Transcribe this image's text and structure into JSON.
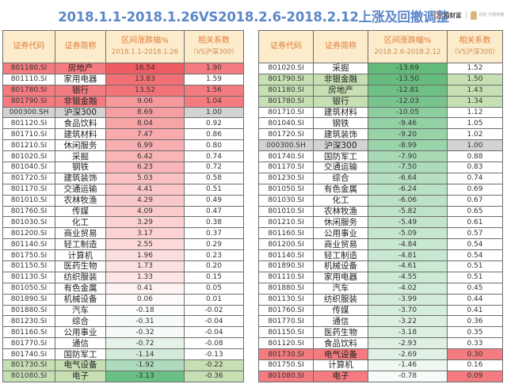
{
  "title": "2018.1.1-2018.1.26VS2018.2.6-2018.2.12上涨及回撤调整",
  "logo": {
    "brand": "拍财富",
    "sub": "财经 扫描神器"
  },
  "left_table": {
    "headers": {
      "code": "证券代码",
      "name": "证券简称",
      "change": "区间涨跌幅%",
      "change_period": "2018.1.1-2018.1.26",
      "corr": "相关系数",
      "corr_sub": "（VS沪深300）"
    },
    "rows": [
      {
        "code": "801180.SI",
        "name": "房地产",
        "change": "16.54",
        "corr": "1.90",
        "row_bg": "#f47b7f",
        "change_bg": "#ee5c62",
        "corr_bg": "#f47b7f"
      },
      {
        "code": "801110.SI",
        "name": "家用电器",
        "change": "13.83",
        "corr": "1.59",
        "row_bg": "#ffffff",
        "change_bg": "#f27075",
        "corr_bg": "#ffffff"
      },
      {
        "code": "801780.SI",
        "name": "银行",
        "change": "13.52",
        "corr": "1.56",
        "row_bg": "#f47b7f",
        "change_bg": "#f27378",
        "corr_bg": "#f47b7f"
      },
      {
        "code": "801790.SI",
        "name": "非银金融",
        "change": "9.06",
        "corr": "1.04",
        "row_bg": "#f47b7f",
        "change_bg": "#f6999c",
        "corr_bg": "#f47b7f"
      },
      {
        "code": "000300.SH",
        "name": "沪深300",
        "change": "8.69",
        "corr": "1.00",
        "row_bg": "#d3d3d3",
        "change_bg": "#f69ea1",
        "corr_bg": "#d3d3d3"
      },
      {
        "code": "801120.SI",
        "name": "食品饮料",
        "change": "8.04",
        "corr": "0.92",
        "row_bg": "#ffffff",
        "change_bg": "#f7a4a7",
        "corr_bg": "#ffffff"
      },
      {
        "code": "801710.SI",
        "name": "建筑材料",
        "change": "7.47",
        "corr": "0.86",
        "row_bg": "#ffffff",
        "change_bg": "#f8aaad",
        "corr_bg": "#ffffff"
      },
      {
        "code": "801210.SI",
        "name": "休闲服务",
        "change": "6.99",
        "corr": "0.80",
        "row_bg": "#ffffff",
        "change_bg": "#f8afb1",
        "corr_bg": "#ffffff"
      },
      {
        "code": "801020.SI",
        "name": "采掘",
        "change": "6.42",
        "corr": "0.74",
        "row_bg": "#ffffff",
        "change_bg": "#f9b4b6",
        "corr_bg": "#ffffff"
      },
      {
        "code": "801040.SI",
        "name": "钢铁",
        "change": "6.23",
        "corr": "0.72",
        "row_bg": "#ffffff",
        "change_bg": "#f9b6b8",
        "corr_bg": "#ffffff"
      },
      {
        "code": "801720.SI",
        "name": "建筑装饰",
        "change": "5.03",
        "corr": "0.58",
        "row_bg": "#ffffff",
        "change_bg": "#fac1c3",
        "corr_bg": "#ffffff"
      },
      {
        "code": "801170.SI",
        "name": "交通运输",
        "change": "4.41",
        "corr": "0.51",
        "row_bg": "#ffffff",
        "change_bg": "#fbc6c8",
        "corr_bg": "#ffffff"
      },
      {
        "code": "801010.SI",
        "name": "农林牧渔",
        "change": "4.29",
        "corr": "0.49",
        "row_bg": "#ffffff",
        "change_bg": "#fbc8ca",
        "corr_bg": "#ffffff"
      },
      {
        "code": "801760.SI",
        "name": "传媒",
        "change": "4.09",
        "corr": "0.47",
        "row_bg": "#ffffff",
        "change_bg": "#fbcacb",
        "corr_bg": "#ffffff"
      },
      {
        "code": "801030.SI",
        "name": "化工",
        "change": "3.29",
        "corr": "0.38",
        "row_bg": "#ffffff",
        "change_bg": "#fcd1d2",
        "corr_bg": "#ffffff"
      },
      {
        "code": "801200.SI",
        "name": "商业贸易",
        "change": "3.17",
        "corr": "0.37",
        "row_bg": "#ffffff",
        "change_bg": "#fcd2d3",
        "corr_bg": "#ffffff"
      },
      {
        "code": "801140.SI",
        "name": "轻工制造",
        "change": "2.55",
        "corr": "0.29",
        "row_bg": "#ffffff",
        "change_bg": "#fdd8d9",
        "corr_bg": "#ffffff"
      },
      {
        "code": "801750.SI",
        "name": "计算机",
        "change": "1.96",
        "corr": "0.23",
        "row_bg": "#ffffff",
        "change_bg": "#fddedf",
        "corr_bg": "#ffffff"
      },
      {
        "code": "801150.SI",
        "name": "医药生物",
        "change": "1.73",
        "corr": "0.20",
        "row_bg": "#ffffff",
        "change_bg": "#fde0e1",
        "corr_bg": "#ffffff"
      },
      {
        "code": "801130.SI",
        "name": "纺织服装",
        "change": "1.33",
        "corr": "0.15",
        "row_bg": "#ffffff",
        "change_bg": "#fee4e5",
        "corr_bg": "#ffffff"
      },
      {
        "code": "801050.SI",
        "name": "有色金属",
        "change": "0.41",
        "corr": "0.05",
        "row_bg": "#ffffff",
        "change_bg": "#fff2f2",
        "corr_bg": "#ffffff"
      },
      {
        "code": "801890.SI",
        "name": "机械设备",
        "change": "0.06",
        "corr": "0.01",
        "row_bg": "#ffffff",
        "change_bg": "#fffafa",
        "corr_bg": "#ffffff"
      },
      {
        "code": "801880.SI",
        "name": "汽车",
        "change": "-0.18",
        "corr": "-0.02",
        "row_bg": "#ffffff",
        "change_bg": "#fbfdfb",
        "corr_bg": "#ffffff"
      },
      {
        "code": "801230.SI",
        "name": "综合",
        "change": "-0.31",
        "corr": "-0.04",
        "row_bg": "#ffffff",
        "change_bg": "#f6faf7",
        "corr_bg": "#ffffff"
      },
      {
        "code": "801160.SI",
        "name": "公用事业",
        "change": "-0.32",
        "corr": "-0.04",
        "row_bg": "#ffffff",
        "change_bg": "#f5faf6",
        "corr_bg": "#ffffff"
      },
      {
        "code": "801770.SI",
        "name": "通信",
        "change": "-0.72",
        "corr": "-0.08",
        "row_bg": "#ffffff",
        "change_bg": "#e4f2e7",
        "corr_bg": "#ffffff"
      },
      {
        "code": "801740.SI",
        "name": "国防军工",
        "change": "-1.14",
        "corr": "-0.13",
        "row_bg": "#ffffff",
        "change_bg": "#d2eada",
        "corr_bg": "#ffffff"
      },
      {
        "code": "801730.SI",
        "name": "电气设备",
        "change": "-1.92",
        "corr": "-0.22",
        "row_bg": "#c6e0b4",
        "change_bg": "#aedbbc",
        "corr_bg": "#c6e0b4"
      },
      {
        "code": "801080.SI",
        "name": "电子",
        "change": "-3.13",
        "corr": "-0.36",
        "row_bg": "#c6e0b4",
        "change_bg": "#6abf84",
        "corr_bg": "#c6e0b4"
      }
    ]
  },
  "right_table": {
    "headers": {
      "code": "证券代码",
      "name": "证券简称",
      "change": "区间涨跌幅%",
      "change_period": "2018.2.6-2018.2.12",
      "corr": "相关系数",
      "corr_sub": "（VS沪深300）"
    },
    "rows": [
      {
        "code": "801020.SI",
        "name": "采掘",
        "change": "-13.69",
        "corr": "1.52",
        "row_bg": "#ffffff",
        "change_bg": "#63bb7b",
        "corr_bg": "#ffffff"
      },
      {
        "code": "801790.SI",
        "name": "非银金融",
        "change": "-13.50",
        "corr": "1.50",
        "row_bg": "#c6e0b4",
        "change_bg": "#66bc7e",
        "corr_bg": "#c6e0b4"
      },
      {
        "code": "801180.SI",
        "name": "房地产",
        "change": "-12.81",
        "corr": "1.43",
        "row_bg": "#c6e0b4",
        "change_bg": "#6ec085",
        "corr_bg": "#c6e0b4"
      },
      {
        "code": "801780.SI",
        "name": "银行",
        "change": "-12.03",
        "corr": "1.34",
        "row_bg": "#c6e0b4",
        "change_bg": "#77c48d",
        "corr_bg": "#c6e0b4"
      },
      {
        "code": "801710.SI",
        "name": "建筑材料",
        "change": "-10.05",
        "corr": "1.12",
        "row_bg": "#ffffff",
        "change_bg": "#8dce9f",
        "corr_bg": "#ffffff"
      },
      {
        "code": "801040.SI",
        "name": "钢铁",
        "change": "-9.46",
        "corr": "1.05",
        "row_bg": "#ffffff",
        "change_bg": "#94d1a5",
        "corr_bg": "#ffffff"
      },
      {
        "code": "801720.SI",
        "name": "建筑装饰",
        "change": "-9.20",
        "corr": "1.02",
        "row_bg": "#ffffff",
        "change_bg": "#97d3a7",
        "corr_bg": "#ffffff"
      },
      {
        "code": "000300.SH",
        "name": "沪深300",
        "change": "-8.99",
        "corr": "1.00",
        "row_bg": "#d3d3d3",
        "change_bg": "#9ad4aa",
        "corr_bg": "#d3d3d3"
      },
      {
        "code": "801740.SI",
        "name": "国防军工",
        "change": "-7.90",
        "corr": "0.88",
        "row_bg": "#ffffff",
        "change_bg": "#a6d9b4",
        "corr_bg": "#ffffff"
      },
      {
        "code": "801170.SI",
        "name": "交通运输",
        "change": "-7.50",
        "corr": "0.83",
        "row_bg": "#ffffff",
        "change_bg": "#abdbb8",
        "corr_bg": "#ffffff"
      },
      {
        "code": "801230.SI",
        "name": "综合",
        "change": "-6.64",
        "corr": "0.74",
        "row_bg": "#ffffff",
        "change_bg": "#b5dfc0",
        "corr_bg": "#ffffff"
      },
      {
        "code": "801050.SI",
        "name": "有色金属",
        "change": "-6.24",
        "corr": "0.69",
        "row_bg": "#ffffff",
        "change_bg": "#b9e1c4",
        "corr_bg": "#ffffff"
      },
      {
        "code": "801030.SI",
        "name": "化工",
        "change": "-6.06",
        "corr": "0.67",
        "row_bg": "#ffffff",
        "change_bg": "#bbe2c6",
        "corr_bg": "#ffffff"
      },
      {
        "code": "801010.SI",
        "name": "农林牧渔",
        "change": "-5.82",
        "corr": "0.65",
        "row_bg": "#ffffff",
        "change_bg": "#bee3c8",
        "corr_bg": "#ffffff"
      },
      {
        "code": "801210.SI",
        "name": "休闲服务",
        "change": "-5.49",
        "corr": "0.61",
        "row_bg": "#ffffff",
        "change_bg": "#c2e5cb",
        "corr_bg": "#ffffff"
      },
      {
        "code": "801160.SI",
        "name": "公用事业",
        "change": "-5.09",
        "corr": "0.57",
        "row_bg": "#ffffff",
        "change_bg": "#c6e7ce",
        "corr_bg": "#ffffff"
      },
      {
        "code": "801200.SI",
        "name": "商业贸易",
        "change": "-4.84",
        "corr": "0.54",
        "row_bg": "#ffffff",
        "change_bg": "#c9e8d1",
        "corr_bg": "#ffffff"
      },
      {
        "code": "801140.SI",
        "name": "轻工制造",
        "change": "-4.81",
        "corr": "0.54",
        "row_bg": "#ffffff",
        "change_bg": "#c9e8d1",
        "corr_bg": "#ffffff"
      },
      {
        "code": "801890.SI",
        "name": "机械设备",
        "change": "-4.61",
        "corr": "0.51",
        "row_bg": "#ffffff",
        "change_bg": "#cbe9d3",
        "corr_bg": "#ffffff"
      },
      {
        "code": "801110.SI",
        "name": "家用电器",
        "change": "-4.55",
        "corr": "0.51",
        "row_bg": "#ffffff",
        "change_bg": "#ccead4",
        "corr_bg": "#ffffff"
      },
      {
        "code": "801880.SI",
        "name": "汽车",
        "change": "-4.02",
        "corr": "0.45",
        "row_bg": "#ffffff",
        "change_bg": "#d2ecd9",
        "corr_bg": "#ffffff"
      },
      {
        "code": "801130.SI",
        "name": "纺织服装",
        "change": "-3.99",
        "corr": "0.44",
        "row_bg": "#ffffff",
        "change_bg": "#d2ecd9",
        "corr_bg": "#ffffff"
      },
      {
        "code": "801760.SI",
        "name": "传媒",
        "change": "-3.70",
        "corr": "0.41",
        "row_bg": "#ffffff",
        "change_bg": "#d5eddc",
        "corr_bg": "#ffffff"
      },
      {
        "code": "801770.SI",
        "name": "通信",
        "change": "-3.22",
        "corr": "0.36",
        "row_bg": "#ffffff",
        "change_bg": "#daefe0",
        "corr_bg": "#ffffff"
      },
      {
        "code": "801150.SI",
        "name": "医药生物",
        "change": "-3.18",
        "corr": "0.35",
        "row_bg": "#ffffff",
        "change_bg": "#daefe0",
        "corr_bg": "#ffffff"
      },
      {
        "code": "801120.SI",
        "name": "食品饮料",
        "change": "-2.93",
        "corr": "0.33",
        "row_bg": "#ffffff",
        "change_bg": "#ddf0e2",
        "corr_bg": "#ffffff"
      },
      {
        "code": "801730.SI",
        "name": "电气设备",
        "change": "-2.69",
        "corr": "0.30",
        "row_bg": "#f47b7f",
        "change_bg": "#e0f1e5",
        "corr_bg": "#f47b7f"
      },
      {
        "code": "801750.SI",
        "name": "计算机",
        "change": "-1.46",
        "corr": "0.16",
        "row_bg": "#ffffff",
        "change_bg": "#eef8f1",
        "corr_bg": "#ffffff"
      },
      {
        "code": "801080.SI",
        "name": "电子",
        "change": "-0.78",
        "corr": "0.09",
        "row_bg": "#f47b7f",
        "change_bg": "#f6fbf8",
        "corr_bg": "#f47b7f"
      }
    ]
  }
}
